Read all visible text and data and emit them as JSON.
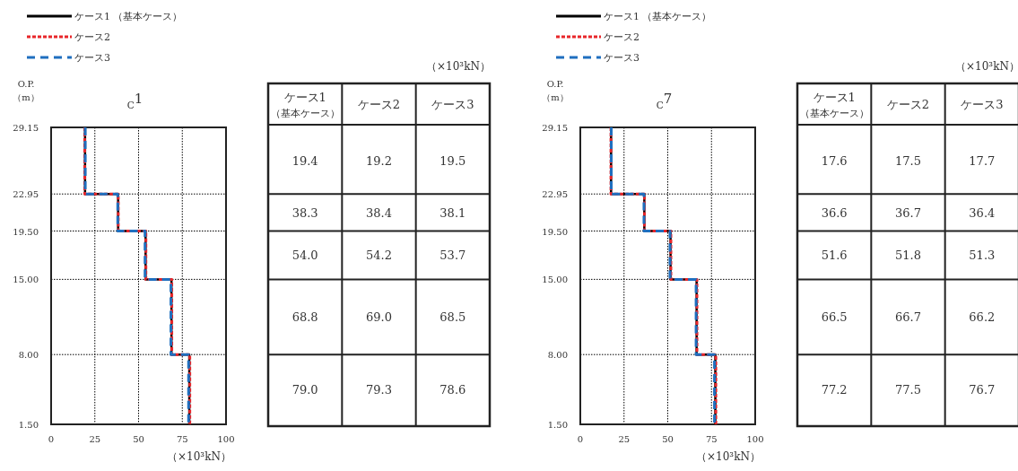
{
  "chart_data": [
    {
      "type": "line",
      "title": "$_{C}$1",
      "xlabel": "（×10³kN）",
      "ylabel": "O.P.\n（m）",
      "legend": "top left",
      "grid": true,
      "xlim": [
        0,
        100
      ],
      "xticks": [
        0,
        25,
        50,
        75,
        100
      ],
      "ylim": [
        1.5,
        29.15
      ],
      "yticks": [
        {
          "value": 29.15,
          "label": "29.15"
        },
        {
          "value": 22.95,
          "label": "22.95"
        },
        {
          "value": 19.5,
          "label": "19.50"
        },
        {
          "value": 15,
          "label": "15.00"
        },
        {
          "value": 8,
          "label": "8.00"
        },
        {
          "value": 1.5,
          "label": "1.50"
        }
      ],
      "series": [
        {
          "name": "ケース1 （基本ケース）",
          "color": "#000000",
          "line_style": "solid",
          "x": [
            19.4,
            19.4,
            38.3,
            38.3,
            54.0,
            54.0,
            68.8,
            68.8,
            79.0,
            79.0
          ],
          "values": [
            29.15,
            22.95,
            22.95,
            19.5,
            19.5,
            15,
            15,
            8,
            8,
            1.5
          ]
        },
        {
          "name": "ケース2",
          "color": "#e8262a",
          "line_style": "dotted",
          "x": [
            19.2,
            19.2,
            38.4,
            38.4,
            54.2,
            54.2,
            69.0,
            69.0,
            79.3,
            79.3
          ],
          "values": [
            29.15,
            22.95,
            22.95,
            19.5,
            19.5,
            15,
            15,
            8,
            8,
            1.5
          ]
        },
        {
          "name": "ケース3",
          "color": "#1f6fbf",
          "line_style": "dashed",
          "x": [
            19.5,
            19.5,
            38.1,
            38.1,
            53.7,
            53.7,
            68.5,
            68.5,
            78.6,
            78.6
          ],
          "values": [
            29.15,
            22.95,
            22.95,
            19.5,
            19.5,
            15,
            15,
            8,
            8,
            1.5
          ]
        }
      ]
    },
    {
      "type": "other",
      "annotations": [
        "（×10³kN）"
      ],
      "categories": [
        "ケース1 （基本ケース）",
        "ケース2",
        "ケース3"
      ],
      "cell_labels": [
        [
          "19.4",
          "19.2",
          "19.5"
        ],
        [
          "38.3",
          "38.4",
          "38.1"
        ],
        [
          "54.0",
          "54.2",
          "53.7"
        ],
        [
          "68.8",
          "69.0",
          "68.5"
        ],
        [
          "79.0",
          "79.3",
          "78.6"
        ]
      ]
    },
    {
      "type": "line",
      "title": "$_{C}$7",
      "xlabel": "（×10³kN）",
      "ylabel": "O.P.\n（m）",
      "legend": "top left",
      "grid": true,
      "xlim": [
        0,
        100
      ],
      "xticks": [
        0,
        25,
        50,
        75,
        100
      ],
      "ylim": [
        1.5,
        29.15
      ],
      "yticks": [
        {
          "value": 29.15,
          "label": "29.15"
        },
        {
          "value": 22.95,
          "label": "22.95"
        },
        {
          "value": 19.5,
          "label": "19.50"
        },
        {
          "value": 15,
          "label": "15.00"
        },
        {
          "value": 8,
          "label": "8.00"
        },
        {
          "value": 1.5,
          "label": "1.50"
        }
      ],
      "series": [
        {
          "name": "ケース1 （基本ケース）",
          "color": "#000000",
          "line_style": "solid",
          "x": [
            17.6,
            17.6,
            36.6,
            36.6,
            51.6,
            51.6,
            66.5,
            66.5,
            77.2,
            77.2
          ],
          "values": [
            29.15,
            22.95,
            22.95,
            19.5,
            19.5,
            15,
            15,
            8,
            8,
            1.5
          ]
        },
        {
          "name": "ケース2",
          "color": "#e8262a",
          "line_style": "dotted",
          "x": [
            17.5,
            17.5,
            36.7,
            36.7,
            51.8,
            51.8,
            66.7,
            66.7,
            77.5,
            77.5
          ],
          "values": [
            29.15,
            22.95,
            22.95,
            19.5,
            19.5,
            15,
            15,
            8,
            8,
            1.5
          ]
        },
        {
          "name": "ケース3",
          "color": "#1f6fbf",
          "line_style": "dashed",
          "x": [
            17.7,
            17.7,
            36.4,
            36.4,
            51.3,
            51.3,
            66.2,
            66.2,
            76.7,
            76.7
          ],
          "values": [
            29.15,
            22.95,
            22.95,
            19.5,
            19.5,
            15,
            15,
            8,
            8,
            1.5
          ]
        }
      ]
    },
    {
      "type": "other",
      "annotations": [
        "（×10³kN）"
      ],
      "categories": [
        "ケース1 （基本ケース）",
        "ケース2",
        "ケース3"
      ],
      "cell_labels": [
        [
          "17.6",
          "17.5",
          "17.7"
        ],
        [
          "36.6",
          "36.7",
          "36.4"
        ],
        [
          "51.6",
          "51.8",
          "51.3"
        ],
        [
          "66.5",
          "66.7",
          "66.2"
        ],
        [
          "77.2",
          "77.5",
          "76.7"
        ]
      ]
    }
  ]
}
